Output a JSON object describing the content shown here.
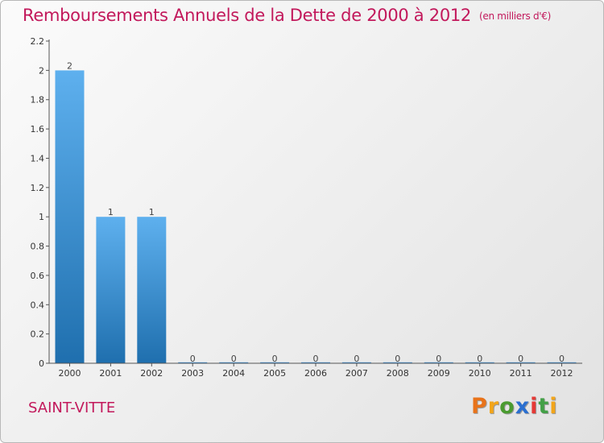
{
  "title": "Remboursements Annuels de la Dette de 2000 à 2012",
  "subtitle": "(en milliers d'€)",
  "commune": "SAINT-VITTE",
  "logo_letters": [
    {
      "char": "P",
      "color": "#e8731a"
    },
    {
      "char": "r",
      "color": "#f2a51a"
    },
    {
      "char": "o",
      "color": "#4a9b2f"
    },
    {
      "char": "x",
      "color": "#2a6fd0"
    },
    {
      "char": "i",
      "color": "#e53935"
    },
    {
      "char": "t",
      "color": "#43a047"
    },
    {
      "char": "i",
      "color": "#f2a51a"
    }
  ],
  "colors": {
    "title": "#c2185b",
    "bar_top": "#5eb0ee",
    "bar_bottom": "#1f6fae",
    "axis": "#555555"
  },
  "chart_data": {
    "type": "bar",
    "title": "Remboursements Annuels de la Dette de 2000 à 2012",
    "subtitle": "(en milliers d'€)",
    "xlabel": "",
    "ylabel": "",
    "categories": [
      "2000",
      "2001",
      "2002",
      "2003",
      "2004",
      "2005",
      "2006",
      "2007",
      "2008",
      "2009",
      "2010",
      "2011",
      "2012"
    ],
    "values": [
      2,
      1,
      1,
      0,
      0,
      0,
      0,
      0,
      0,
      0,
      0,
      0,
      0
    ],
    "data_labels": [
      "2",
      "1",
      "1",
      "0",
      "0",
      "0",
      "0",
      "0",
      "0",
      "0",
      "0",
      "0",
      "0"
    ],
    "ylim": [
      0,
      2.2
    ],
    "yticks": [
      0,
      0.2,
      0.4,
      0.6,
      0.8,
      1,
      1.2,
      1.4,
      1.6,
      1.8,
      2,
      2.2
    ],
    "ytick_labels": [
      "0",
      "0.2",
      "0.4",
      "0.6",
      "0.8",
      "1",
      "1.2",
      "1.4",
      "1.6",
      "1.8",
      "2",
      "2.2"
    ],
    "grid": false,
    "legend": "none"
  }
}
